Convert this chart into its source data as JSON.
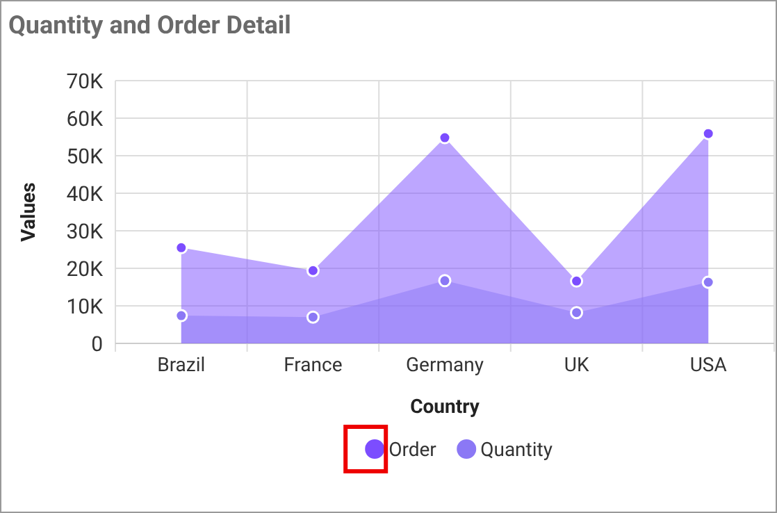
{
  "chart_data": {
    "type": "area",
    "title": "Quantity and Order Detail",
    "xlabel": "Country",
    "ylabel": "Values",
    "categories": [
      "Brazil",
      "France",
      "Germany",
      "UK",
      "USA"
    ],
    "series": [
      {
        "name": "Order",
        "color": "#7c4dff",
        "values": [
          25500,
          19400,
          54800,
          16600,
          55900
        ]
      },
      {
        "name": "Quantity",
        "color": "#8b78f5",
        "values": [
          7400,
          7000,
          16700,
          8200,
          16300
        ]
      }
    ],
    "ylim": [
      0,
      70000
    ],
    "yticks": [
      {
        "value": 0,
        "label": "0"
      },
      {
        "value": 10000,
        "label": "10K"
      },
      {
        "value": 20000,
        "label": "20K"
      },
      {
        "value": 30000,
        "label": "30K"
      },
      {
        "value": 40000,
        "label": "40K"
      },
      {
        "value": 50000,
        "label": "50K"
      },
      {
        "value": 60000,
        "label": "60K"
      },
      {
        "value": 70000,
        "label": "70K"
      }
    ],
    "grid": true,
    "legend": "bottom",
    "marker": "circle"
  }
}
